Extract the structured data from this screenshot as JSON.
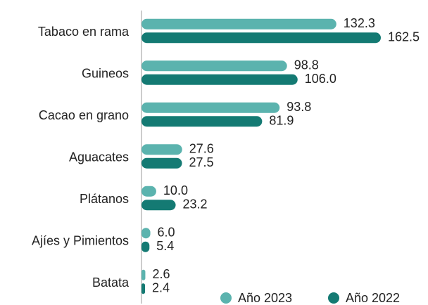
{
  "chart_data": {
    "type": "barh",
    "categories": [
      "Tabaco en rama",
      "Guineos",
      "Cacao en grano",
      "Aguacates",
      "Plátanos",
      "Ajíes y Pimientos",
      "Batata"
    ],
    "series": [
      {
        "name": "Año 2023",
        "color": "#5bb3ae",
        "values": [
          132.3,
          98.8,
          93.8,
          27.6,
          10.0,
          6.0,
          2.6
        ],
        "value_labels": [
          "132.3",
          "98.8",
          "93.8",
          "27.6",
          "10.0",
          "6.0",
          "2.6"
        ]
      },
      {
        "name": "Año 2022",
        "color": "#147a73",
        "values": [
          162.5,
          106.0,
          81.9,
          27.5,
          23.2,
          5.4,
          2.4
        ],
        "value_labels": [
          "162.5",
          "106.0",
          "81.9",
          "27.5",
          "23.2",
          "5.4",
          "2.4"
        ]
      }
    ],
    "legend": "lower right"
  }
}
